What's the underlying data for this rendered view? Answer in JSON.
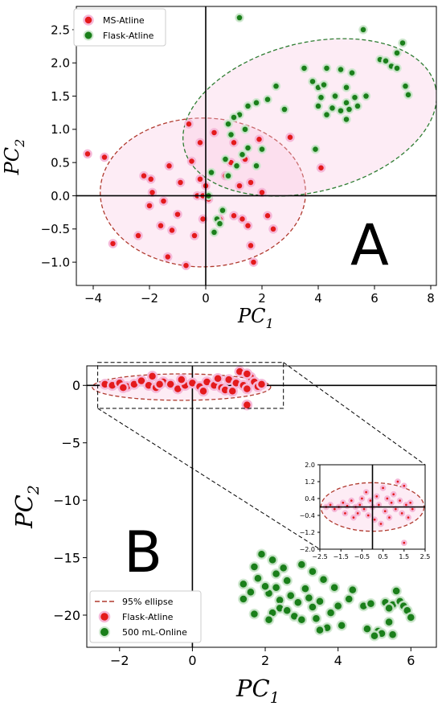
{
  "chart_data": [
    {
      "type": "scatter",
      "panel_label": "A",
      "xlabel": "PC",
      "xlabel_sub": "1",
      "ylabel": "PC",
      "ylabel_sub": "2",
      "xlim": [
        -4.6,
        8.2
      ],
      "ylim": [
        -1.35,
        2.85
      ],
      "xticks": [
        -4,
        -2,
        0,
        2,
        4,
        6,
        8
      ],
      "yticks": [
        -1.0,
        -0.5,
        0.0,
        0.5,
        1.0,
        1.5,
        2.0,
        2.5
      ],
      "ytick_labels": [
        "−1.0",
        "−0.5",
        "0.0",
        "0.5",
        "1.0",
        "1.5",
        "2.0",
        "2.5"
      ],
      "xtick_labels": [
        "−4",
        "−2",
        "0",
        "2",
        "4",
        "6",
        "8"
      ],
      "legend_position": "top-left",
      "series": [
        {
          "name": "MS-Atline",
          "color": "#e41a1c",
          "points": [
            [
              -4.2,
              0.63
            ],
            [
              -3.6,
              0.58
            ],
            [
              -3.3,
              -0.72
            ],
            [
              -2.4,
              -0.6
            ],
            [
              -2.2,
              0.3
            ],
            [
              -1.95,
              0.25
            ],
            [
              -1.9,
              0.05
            ],
            [
              -2.0,
              -0.15
            ],
            [
              -1.6,
              -0.45
            ],
            [
              -1.5,
              -0.08
            ],
            [
              -1.3,
              0.45
            ],
            [
              -1.2,
              -0.52
            ],
            [
              -1.0,
              -0.28
            ],
            [
              -0.9,
              0.2
            ],
            [
              -1.35,
              -0.92
            ],
            [
              -0.7,
              -1.05
            ],
            [
              -0.6,
              1.08
            ],
            [
              -0.4,
              -0.6
            ],
            [
              -0.3,
              0.0
            ],
            [
              -0.2,
              0.25
            ],
            [
              -0.5,
              0.52
            ],
            [
              -0.2,
              0.8
            ],
            [
              -0.1,
              0.0
            ],
            [
              -0.1,
              -0.35
            ],
            [
              0.0,
              0.15
            ],
            [
              0.1,
              -0.05
            ],
            [
              0.3,
              0.95
            ],
            [
              0.5,
              -0.35
            ],
            [
              0.9,
              0.5
            ],
            [
              0.7,
              0.3
            ],
            [
              1.0,
              -0.3
            ],
            [
              1.3,
              -0.35
            ],
            [
              1.2,
              0.15
            ],
            [
              1.4,
              0.55
            ],
            [
              1.5,
              -0.45
            ],
            [
              1.6,
              -0.75
            ],
            [
              1.7,
              -1.0
            ],
            [
              1.9,
              0.85
            ],
            [
              2.0,
              0.05
            ],
            [
              2.2,
              -0.3
            ],
            [
              1.6,
              0.2
            ],
            [
              2.4,
              -0.5
            ],
            [
              3.0,
              0.88
            ],
            [
              4.1,
              0.42
            ],
            [
              1.0,
              0.8
            ]
          ]
        },
        {
          "name": "Flask-Atline",
          "color": "#1a7f1a",
          "points": [
            [
              1.2,
              2.68
            ],
            [
              5.6,
              2.5
            ],
            [
              7.0,
              2.3
            ],
            [
              6.8,
              2.15
            ],
            [
              6.2,
              2.05
            ],
            [
              6.4,
              2.03
            ],
            [
              6.6,
              1.95
            ],
            [
              6.8,
              1.92
            ],
            [
              7.1,
              1.65
            ],
            [
              7.2,
              1.52
            ],
            [
              3.5,
              1.92
            ],
            [
              4.3,
              1.92
            ],
            [
              4.8,
              1.9
            ],
            [
              5.2,
              1.85
            ],
            [
              3.8,
              1.72
            ],
            [
              4.0,
              1.63
            ],
            [
              4.2,
              1.67
            ],
            [
              5.0,
              1.63
            ],
            [
              4.1,
              1.48
            ],
            [
              4.6,
              1.5
            ],
            [
              5.0,
              1.4
            ],
            [
              5.3,
              1.48
            ],
            [
              5.7,
              1.5
            ],
            [
              4.0,
              1.35
            ],
            [
              4.5,
              1.32
            ],
            [
              4.8,
              1.28
            ],
            [
              5.1,
              1.3
            ],
            [
              5.4,
              1.35
            ],
            [
              4.3,
              1.22
            ],
            [
              5.0,
              1.15
            ],
            [
              2.5,
              1.65
            ],
            [
              2.2,
              1.45
            ],
            [
              1.8,
              1.4
            ],
            [
              1.5,
              1.35
            ],
            [
              1.2,
              1.22
            ],
            [
              1.0,
              1.18
            ],
            [
              0.8,
              1.08
            ],
            [
              1.4,
              1.0
            ],
            [
              0.9,
              0.92
            ],
            [
              1.5,
              0.72
            ],
            [
              2.0,
              0.7
            ],
            [
              1.3,
              0.62
            ],
            [
              0.7,
              0.55
            ],
            [
              1.1,
              0.45
            ],
            [
              1.8,
              0.45
            ],
            [
              0.2,
              0.35
            ],
            [
              0.1,
              0.0
            ],
            [
              0.6,
              -0.22
            ],
            [
              0.4,
              -0.35
            ],
            [
              0.5,
              -0.42
            ],
            [
              0.3,
              -0.55
            ],
            [
              3.9,
              0.7
            ],
            [
              0.8,
              0.3
            ],
            [
              2.8,
              1.3
            ]
          ]
        }
      ],
      "ellipses": [
        {
          "series": "MS-Atline",
          "cx": -0.1,
          "cy": 0.05,
          "rx": 3.65,
          "ry": 1.12,
          "angle_deg": 0,
          "color": "#b03a2e",
          "style": "dashed"
        },
        {
          "series": "Flask-Atline",
          "cx": 3.7,
          "cy": 1.18,
          "rx": 4.6,
          "ry": 1.12,
          "angle_deg": 14,
          "color": "#2e7d32",
          "style": "dashed"
        }
      ]
    },
    {
      "type": "scatter",
      "panel_label": "B",
      "xlabel": "PC",
      "xlabel_sub": "1",
      "ylabel": "PC",
      "ylabel_sub": "2",
      "xlim": [
        -2.9,
        6.7
      ],
      "ylim": [
        -22.8,
        1.7
      ],
      "xticks": [
        -2,
        0,
        2,
        4,
        6
      ],
      "xtick_labels": [
        "−2",
        "0",
        "2",
        "4",
        "6"
      ],
      "yticks": [
        0,
        -5,
        -10,
        -15,
        -20
      ],
      "ytick_labels": [
        "0",
        "−5",
        "−10",
        "−15",
        "−20"
      ],
      "legend_position": "bottom-left",
      "legend": [
        "95% ellipse",
        "Flask-Atline",
        "500 mL-Online"
      ],
      "series": [
        {
          "name": "Flask-Atline",
          "color": "#e41a1c",
          "points": [
            [
              -2.4,
              0.1
            ],
            [
              -2.2,
              0.0
            ],
            [
              -2.0,
              0.2
            ],
            [
              -1.8,
              -0.1
            ],
            [
              -1.6,
              0.1
            ],
            [
              -1.4,
              0.4
            ],
            [
              -1.2,
              0.0
            ],
            [
              -1.0,
              -0.2
            ],
            [
              -0.8,
              0.3
            ],
            [
              -0.6,
              0.1
            ],
            [
              -0.4,
              -0.3
            ],
            [
              -0.2,
              0.0
            ],
            [
              0.0,
              0.2
            ],
            [
              0.2,
              -0.1
            ],
            [
              0.4,
              0.3
            ],
            [
              0.6,
              0.0
            ],
            [
              0.8,
              -0.2
            ],
            [
              1.0,
              0.5
            ],
            [
              1.2,
              0.2
            ],
            [
              1.4,
              0.0
            ],
            [
              1.5,
              -0.3
            ],
            [
              1.6,
              0.7
            ],
            [
              1.7,
              0.3
            ],
            [
              1.8,
              -0.1
            ],
            [
              1.3,
              1.2
            ],
            [
              1.5,
              1.0
            ],
            [
              0.9,
              -0.4
            ],
            [
              1.5,
              -1.7
            ],
            [
              0.3,
              -0.5
            ],
            [
              -1.1,
              0.8
            ],
            [
              -0.3,
              0.5
            ],
            [
              0.7,
              0.6
            ],
            [
              -1.9,
              -0.2
            ],
            [
              1.1,
              -0.5
            ],
            [
              1.9,
              0.1
            ],
            [
              -0.9,
              0.1
            ]
          ]
        },
        {
          "name": "500 mL-Online",
          "color": "#1a7f1a",
          "points": [
            [
              1.9,
              -14.7
            ],
            [
              2.2,
              -15.2
            ],
            [
              1.7,
              -15.8
            ],
            [
              2.5,
              -15.9
            ],
            [
              3.0,
              -15.6
            ],
            [
              3.3,
              -16.2
            ],
            [
              2.3,
              -16.4
            ],
            [
              1.8,
              -16.8
            ],
            [
              2.6,
              -17.0
            ],
            [
              3.6,
              -16.9
            ],
            [
              1.4,
              -17.3
            ],
            [
              2.3,
              -17.6
            ],
            [
              3.1,
              -17.7
            ],
            [
              2.1,
              -18.1
            ],
            [
              2.7,
              -18.3
            ],
            [
              3.9,
              -17.6
            ],
            [
              4.4,
              -17.8
            ],
            [
              1.4,
              -18.6
            ],
            [
              2.4,
              -18.7
            ],
            [
              3.2,
              -18.5
            ],
            [
              2.9,
              -18.9
            ],
            [
              3.5,
              -18.8
            ],
            [
              3.3,
              -19.3
            ],
            [
              2.4,
              -19.4
            ],
            [
              2.2,
              -19.8
            ],
            [
              2.6,
              -19.6
            ],
            [
              1.7,
              -19.9
            ],
            [
              2.8,
              -20.1
            ],
            [
              2.1,
              -20.4
            ],
            [
              3.4,
              -20.3
            ],
            [
              3.8,
              -19.8
            ],
            [
              4.1,
              -20.9
            ],
            [
              3.7,
              -21.1
            ],
            [
              4.3,
              -18.6
            ],
            [
              5.6,
              -17.9
            ],
            [
              4.0,
              -19.2
            ],
            [
              3.0,
              -20.4
            ],
            [
              5.3,
              -18.9
            ],
            [
              5.5,
              -19.1
            ],
            [
              5.7,
              -18.8
            ],
            [
              5.4,
              -19.4
            ],
            [
              5.8,
              -19.2
            ],
            [
              5.9,
              -19.6
            ],
            [
              6.0,
              -20.2
            ],
            [
              5.4,
              -20.6
            ],
            [
              4.8,
              -21.2
            ],
            [
              5.1,
              -21.4
            ],
            [
              5.5,
              -21.7
            ],
            [
              5.2,
              -21.6
            ],
            [
              5.0,
              -21.8
            ],
            [
              4.7,
              -19.2
            ],
            [
              3.5,
              -21.3
            ],
            [
              1.6,
              -18.0
            ],
            [
              2.0,
              -17.5
            ],
            [
              4.9,
              -19.0
            ]
          ]
        }
      ],
      "ellipses": [
        {
          "series": "Flask-Atline",
          "cx": -0.3,
          "cy": -0.15,
          "rx": 2.45,
          "ry": 1.15,
          "angle_deg": 0,
          "color": "#b03a2e",
          "style": "dashed"
        }
      ],
      "zoom_box": {
        "x": [
          -2.6,
          2.5
        ],
        "y": [
          -2.0,
          2.0
        ]
      },
      "inset": {
        "xlim": [
          -2.5,
          2.5
        ],
        "ylim": [
          -2.0,
          2.0
        ],
        "xticks": [
          -2.5,
          -1.5,
          -0.5,
          0.5,
          1.5,
          2.5
        ],
        "xtick_labels": [
          "−2.5",
          "−1.5",
          "−0.5",
          "0.5",
          "1.5",
          "2.5"
        ],
        "yticks": [
          2.0,
          1.2,
          0.4,
          -0.4,
          -1.2,
          -2.0
        ],
        "ytick_labels": [
          "2.0",
          "1.2",
          "0.4",
          "−0.4",
          "−1.2",
          "−2.0"
        ],
        "ellipse": {
          "cx": 0.0,
          "cy": 0.0,
          "rx": 2.45,
          "ry": 1.15,
          "color": "#b03a2e"
        },
        "points": [
          [
            -2.2,
            0.0
          ],
          [
            -2.0,
            0.1
          ],
          [
            -1.8,
            -0.1
          ],
          [
            -1.6,
            0.0
          ],
          [
            -1.4,
            0.2
          ],
          [
            -1.3,
            -0.3
          ],
          [
            -1.2,
            0.05
          ],
          [
            -1.0,
            0.3
          ],
          [
            -0.9,
            -0.5
          ],
          [
            -0.8,
            0.0
          ],
          [
            -0.6,
            0.1
          ],
          [
            -0.5,
            0.4
          ],
          [
            -0.4,
            -0.1
          ],
          [
            -0.3,
            0.7
          ],
          [
            -0.2,
            -0.4
          ],
          [
            -0.1,
            0.3
          ],
          [
            0.0,
            0.0
          ],
          [
            0.1,
            -0.6
          ],
          [
            0.2,
            0.5
          ],
          [
            0.3,
            0.1
          ],
          [
            0.5,
            0.9
          ],
          [
            0.6,
            -0.2
          ],
          [
            0.7,
            0.4
          ],
          [
            0.8,
            -0.5
          ],
          [
            0.9,
            0.2
          ],
          [
            1.0,
            0.6
          ],
          [
            1.1,
            -0.1
          ],
          [
            1.2,
            1.2
          ],
          [
            1.3,
            0.3
          ],
          [
            1.4,
            -0.3
          ],
          [
            1.5,
            1.0
          ],
          [
            1.6,
            0.1
          ],
          [
            1.7,
            -0.5
          ],
          [
            1.5,
            -1.7
          ],
          [
            0.4,
            -0.8
          ],
          [
            -0.7,
            -0.3
          ],
          [
            1.8,
            0.2
          ],
          [
            1.9,
            -0.1
          ]
        ]
      }
    }
  ]
}
